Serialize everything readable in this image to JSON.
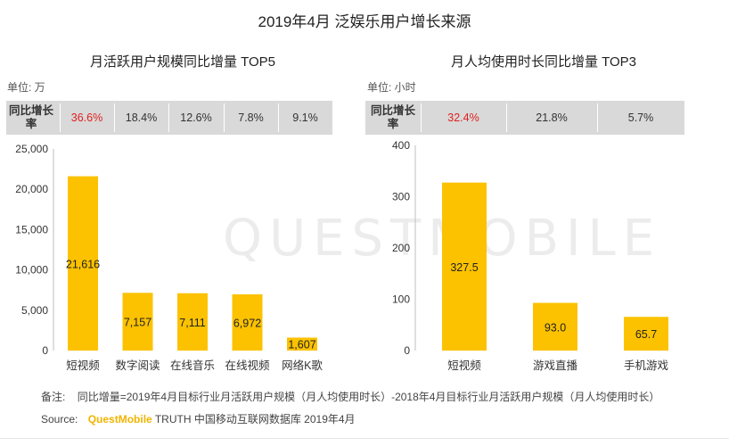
{
  "title": "2019年4月 泛娱乐用户增长来源",
  "watermark": "QUESTMOBILE",
  "growth_header": "同比增长率",
  "highlight_color": "#e02020",
  "bar_color": "#fcc200",
  "band_color": "#d9d9d9",
  "left": {
    "subtitle": "月活跃用户规模同比增量 TOP5",
    "unit": "单位: 万",
    "growth": [
      "36.6%",
      "18.4%",
      "12.6%",
      "7.8%",
      "9.1%"
    ],
    "value_labels": [
      "21,616",
      "7,157",
      "7,111",
      "6,972",
      "1,607"
    ],
    "y_ticks": [
      "0",
      "5,000",
      "10,000",
      "15,000",
      "20,000",
      "25,000"
    ]
  },
  "right": {
    "subtitle": "月人均使用时长同比增量 TOP3",
    "unit": "单位: 小时",
    "growth": [
      "32.4%",
      "21.8%",
      "5.7%"
    ],
    "value_labels": [
      "327.5",
      "93.0",
      "65.7"
    ],
    "y_ticks": [
      "0",
      "100",
      "200",
      "300",
      "400"
    ]
  },
  "footer": {
    "note_label": "备注:",
    "note_text": "同比增量=2019年4月目标行业月活跃用户规模（月人均使用时长）-2018年4月目标行业月活跃用户规模（月人均使用时长）",
    "source_label": "Source:",
    "source_brand": "QuestMobile",
    "source_text": "TRUTH 中国移动互联网数据库 2019年4月"
  },
  "chart_data": [
    {
      "type": "bar",
      "title": "月活跃用户规模同比增量 TOP5",
      "categories": [
        "短视频",
        "数字阅读",
        "在线音乐",
        "在线视频",
        "网络K歌"
      ],
      "values": [
        21616,
        7157,
        7111,
        6972,
        1607
      ],
      "ylim": [
        0,
        25000
      ],
      "xlabel": "",
      "ylabel": "",
      "grid": false
    },
    {
      "type": "bar",
      "title": "月人均使用时长同比增量 TOP3",
      "categories": [
        "短视频",
        "游戏直播",
        "手机游戏"
      ],
      "values": [
        327.5,
        93.0,
        65.7
      ],
      "ylim": [
        0,
        400
      ],
      "xlabel": "",
      "ylabel": "",
      "grid": false
    }
  ]
}
